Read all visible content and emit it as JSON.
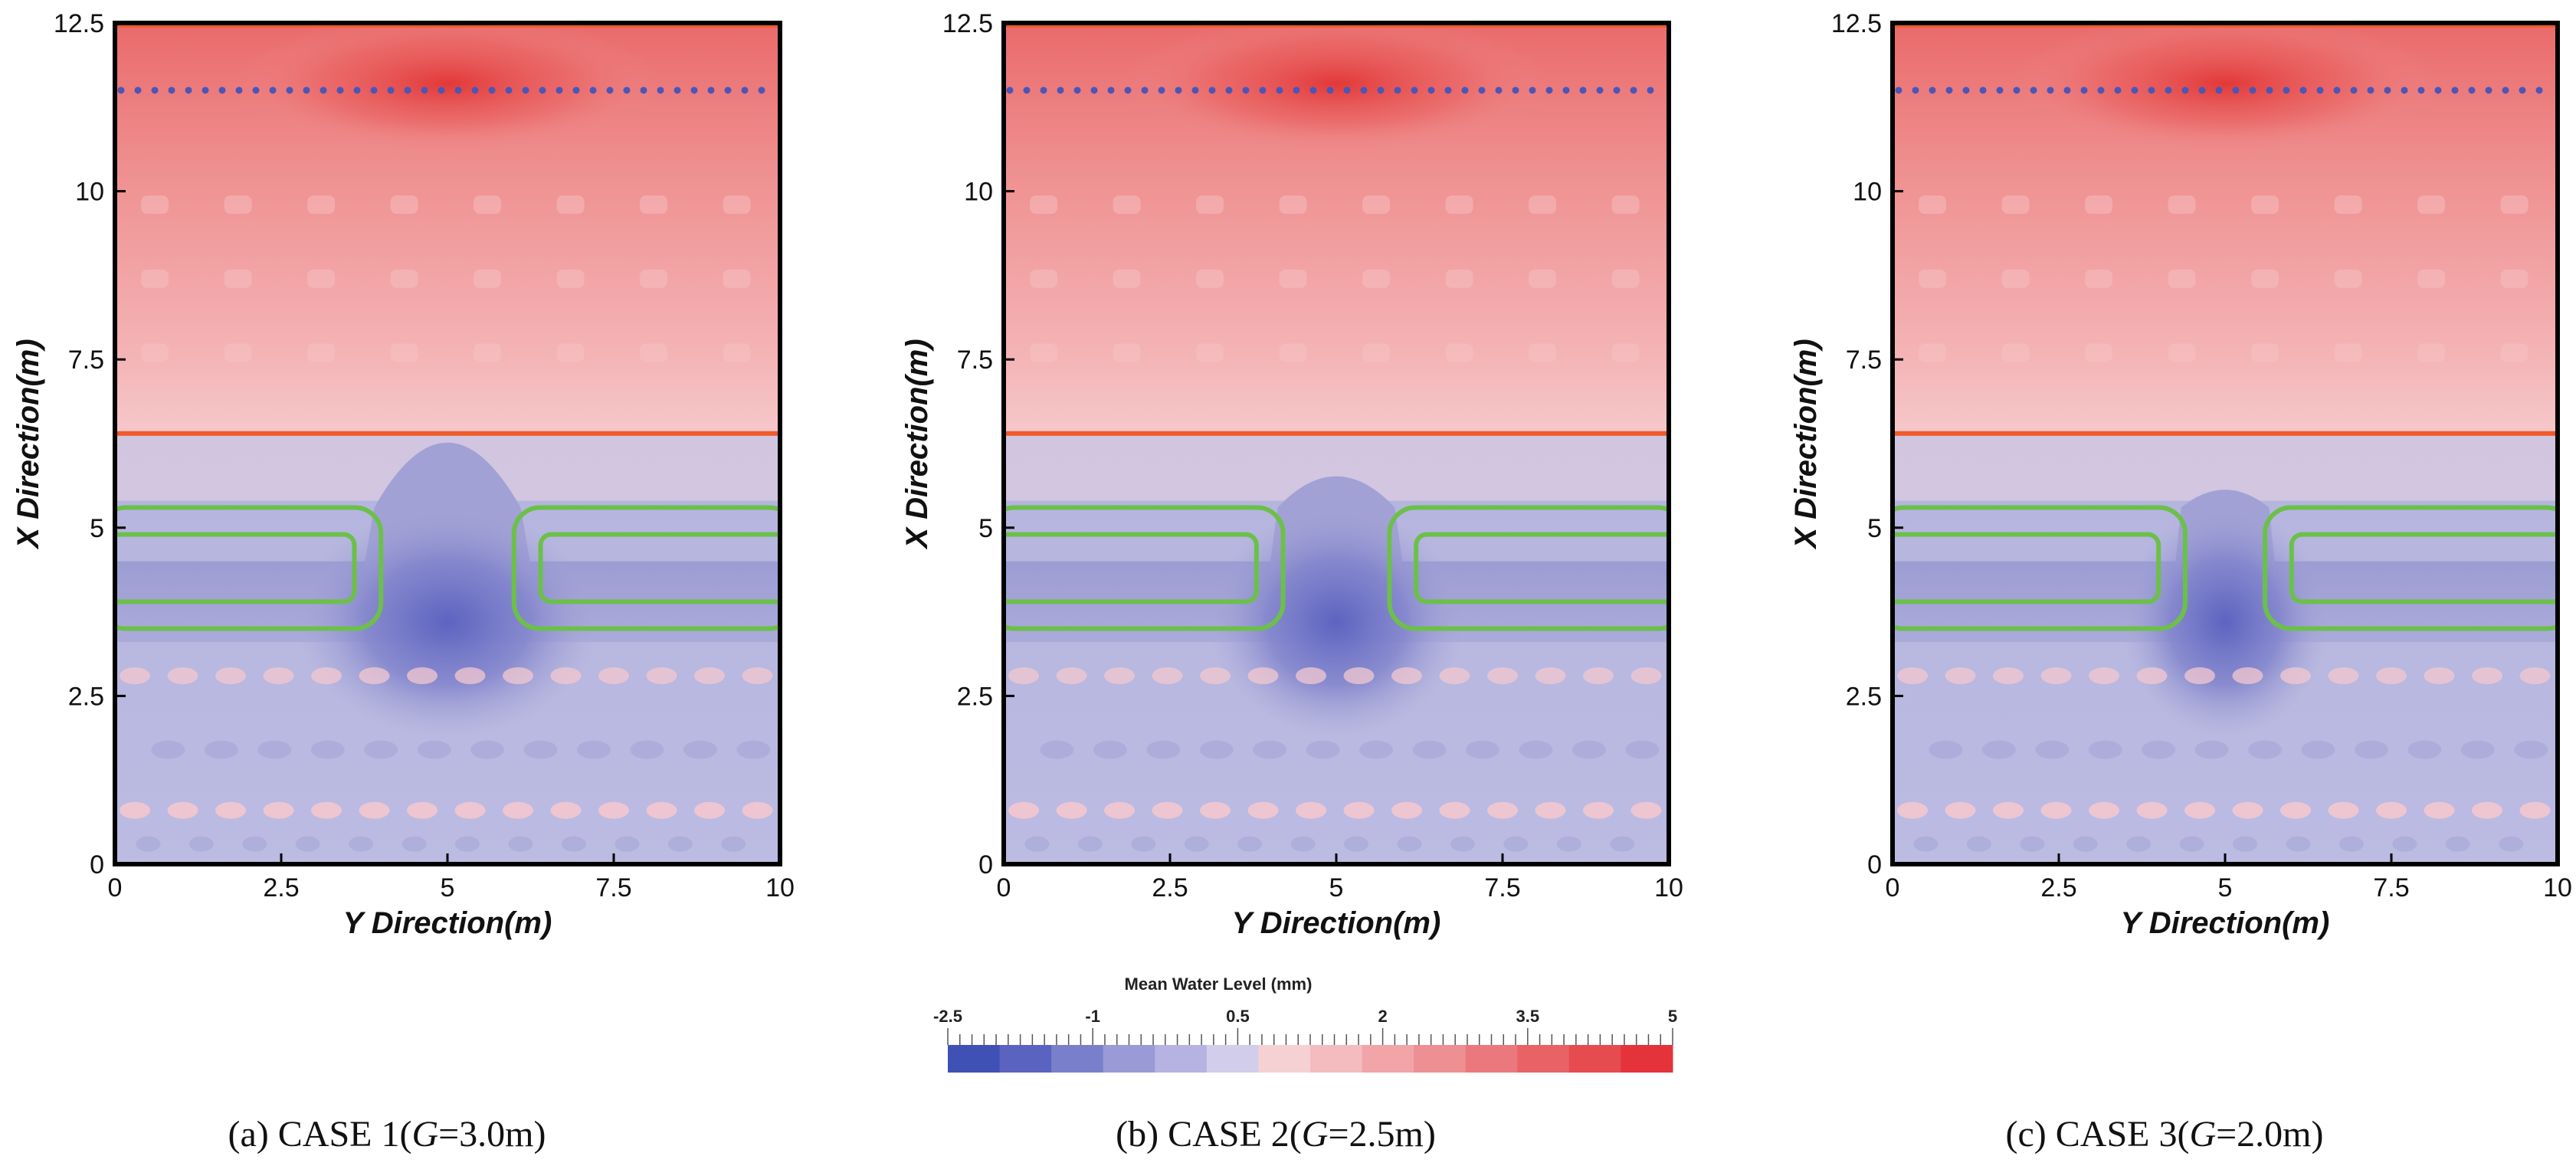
{
  "chart_data": [
    {
      "type": "heatmap",
      "caption": {
        "prefix": "(a)  CASE  1(",
        "var": "G",
        "suffix": "=3.0m)"
      },
      "xlabel": "Y Direction(m)",
      "ylabel": "X Direction(m)",
      "xlim": [
        0,
        10
      ],
      "ylim": [
        0,
        12.5
      ],
      "xticks": [
        "0",
        "2.5",
        "5",
        "7.5",
        "10"
      ],
      "yticks": [
        "0",
        "2.5",
        "5",
        "7.5",
        "10",
        "12.5"
      ],
      "gap_G_m": 3.0,
      "high_zone_bottom_x": 6.4,
      "dotted_line_x": 11.5,
      "central_low_top_x": 7.0,
      "structures": {
        "outer_top": 5.3,
        "outer_bottom": 3.5,
        "inner_top": 4.9,
        "inner_bottom": 3.9,
        "left_outer_end": 4.0,
        "left_inner_end": 3.6,
        "right_outer_start": 6.0,
        "right_inner_start": 6.4
      }
    },
    {
      "type": "heatmap",
      "caption": {
        "prefix": "(b)  CASE  2(",
        "var": "G",
        "suffix": "=2.5m)"
      },
      "xlabel": "Y Direction(m)",
      "ylabel": "X Direction(m)",
      "xlim": [
        0,
        10
      ],
      "ylim": [
        0,
        12.5
      ],
      "xticks": [
        "0",
        "2.5",
        "5",
        "7.5",
        "10"
      ],
      "yticks": [
        "0",
        "2.5",
        "5",
        "7.5",
        "10",
        "12.5"
      ],
      "gap_G_m": 2.5,
      "high_zone_bottom_x": 6.4,
      "dotted_line_x": 11.5,
      "central_low_top_x": 6.0,
      "structures": {
        "outer_top": 5.3,
        "outer_bottom": 3.5,
        "inner_top": 4.9,
        "inner_bottom": 3.9,
        "left_outer_end": 4.2,
        "left_inner_end": 3.8,
        "right_outer_start": 5.8,
        "right_inner_start": 6.2
      }
    },
    {
      "type": "heatmap",
      "caption": {
        "prefix": "(c)  CASE  3(",
        "var": "G",
        "suffix": "=2.0m)"
      },
      "xlabel": "Y Direction(m)",
      "ylabel": "X Direction(m)",
      "xlim": [
        0,
        10
      ],
      "ylim": [
        0,
        12.5
      ],
      "xticks": [
        "0",
        "2.5",
        "5",
        "7.5",
        "10"
      ],
      "yticks": [
        "0",
        "2.5",
        "5",
        "7.5",
        "10",
        "12.5"
      ],
      "gap_G_m": 2.0,
      "high_zone_bottom_x": 6.4,
      "dotted_line_x": 11.5,
      "central_low_top_x": 5.6,
      "structures": {
        "outer_top": 5.3,
        "outer_bottom": 3.5,
        "inner_top": 4.9,
        "inner_bottom": 3.9,
        "left_outer_end": 4.4,
        "left_inner_end": 4.0,
        "right_outer_start": 5.6,
        "right_inner_start": 6.0
      }
    }
  ],
  "colorbar": {
    "title": "Mean Water Level (mm)",
    "tick_labels": [
      "-2.5",
      "-1",
      "0.5",
      "2",
      "3.5",
      "5"
    ],
    "tick_values": [
      -2.5,
      -1,
      0.5,
      2,
      3.5,
      5
    ],
    "min": -2.5,
    "max": 5,
    "colors": [
      "#3f51b5",
      "#5b63c0",
      "#7a7fcb",
      "#9a9ad6",
      "#b6b3e2",
      "#d2cdea",
      "#f6d1d3",
      "#f4bcbf",
      "#f1a5a9",
      "#ee8f93",
      "#eb787c",
      "#e86266",
      "#e64b50",
      "#e4333a"
    ]
  },
  "colors": {
    "frame": "#000000",
    "high_zone_outline": "#f05a28",
    "dotted_line": "#4a56b8",
    "structure_outline": "#6cc04a",
    "low": "#b3b3dd",
    "high": "#ef9a9a"
  }
}
